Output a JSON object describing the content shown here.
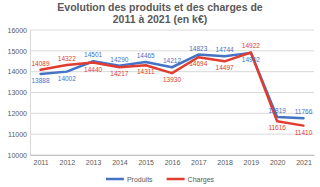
{
  "chart_data": {
    "type": "line",
    "title": "Evolution des produits et des charges de 2011 à 2021 (en k€)",
    "categories": [
      "2011",
      "2012",
      "2013",
      "2014",
      "2015",
      "2016",
      "2017",
      "2018",
      "2019",
      "2020",
      "2021"
    ],
    "series": [
      {
        "name": "Produits",
        "color": "#4472c4",
        "values": [
          13888,
          14002,
          14501,
          14290,
          14465,
          14212,
          14823,
          14744,
          14902,
          11819,
          11766
        ]
      },
      {
        "name": "Charges",
        "color": "#e03c31",
        "values": [
          14089,
          14322,
          14440,
          14217,
          14311,
          13930,
          14694,
          14497,
          14922,
          11616,
          11410
        ]
      }
    ],
    "ylim": [
      10000,
      16000
    ],
    "yticks": [
      10000,
      11000,
      12000,
      13000,
      14000,
      15000,
      16000
    ],
    "grid": true,
    "data_labels": true,
    "legend": "bottom"
  }
}
